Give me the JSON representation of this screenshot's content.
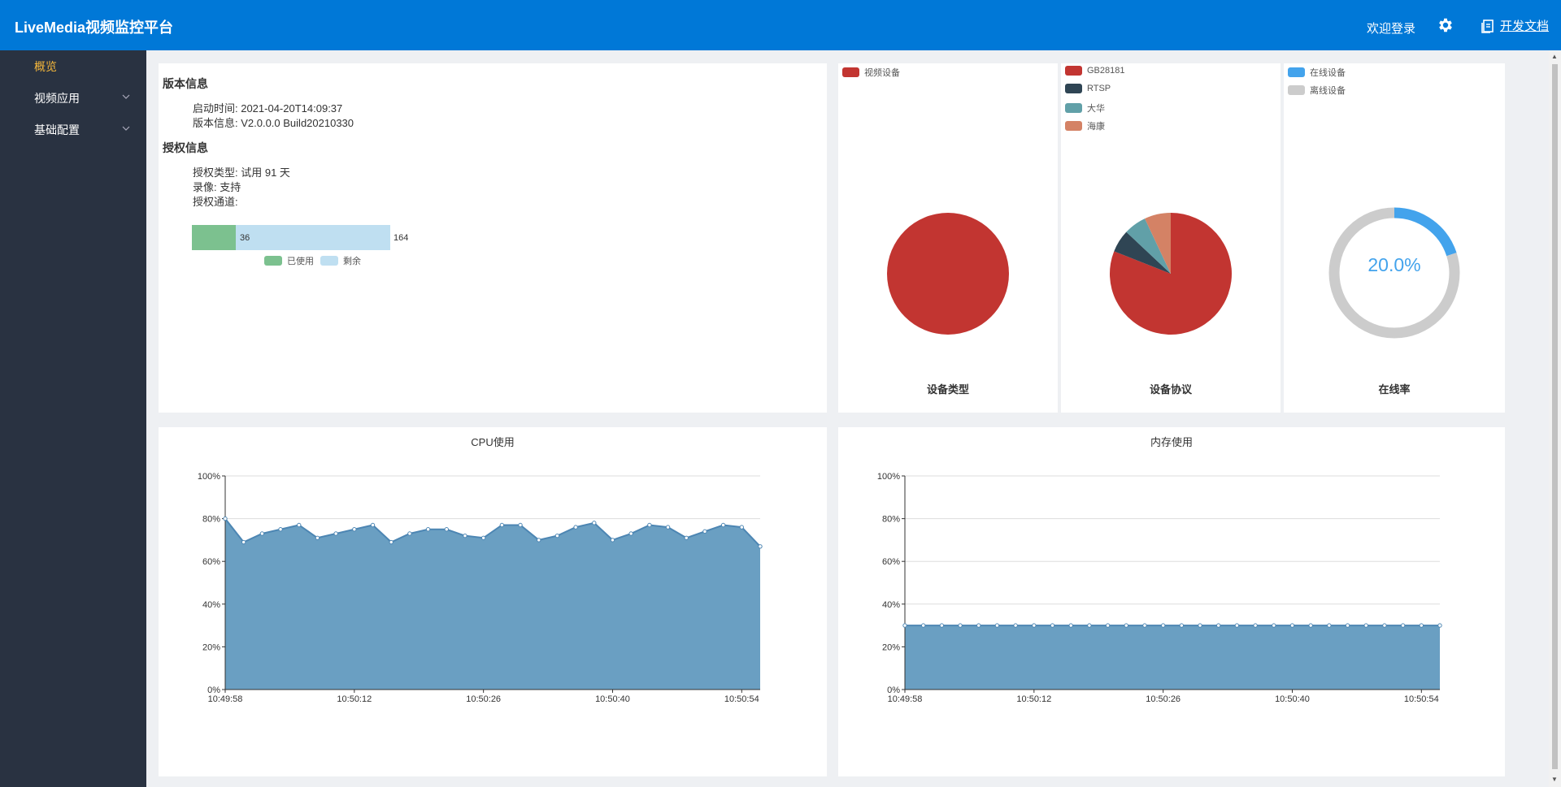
{
  "header": {
    "brand": "LiveMedia视频监控平台",
    "welcome": "欢迎登录",
    "settings_icon": "gear-icon",
    "docs_icon": "document-icon",
    "docs_label": "开发文档"
  },
  "sidebar": {
    "items": [
      {
        "label": "概览",
        "active": true,
        "has_submenu": false
      },
      {
        "label": "视频应用",
        "active": false,
        "has_submenu": true
      },
      {
        "label": "基础配置",
        "active": false,
        "has_submenu": true
      }
    ]
  },
  "info": {
    "version_title": "版本信息",
    "start_time": "启动时间: 2021-04-20T14:09:37",
    "version": "版本信息: V2.0.0.0 Build20210330",
    "license_title": "授权信息",
    "license_type": "授权类型: 试用 91 天",
    "recording": "录像: 支持",
    "channels": "授权通道:",
    "channel_bar": {
      "used": 36,
      "total": 164,
      "used_label": "已使用",
      "remaining_label": "剩余",
      "used_color": "#7cc18f",
      "remaining_color": "#bfdff1"
    }
  },
  "pies": [
    {
      "title": "设备类型",
      "legend": [
        {
          "label": "视频设备",
          "color": "#c23531"
        }
      ],
      "chart_data": {
        "type": "pie",
        "slices": [
          {
            "label": "视频设备",
            "value": 1,
            "color": "#c23531"
          }
        ]
      }
    },
    {
      "title": "设备协议",
      "legend": [
        {
          "label": "GB28181",
          "color": "#c23531"
        },
        {
          "label": "RTSP",
          "color": "#2f4554"
        },
        {
          "label": "大华",
          "color": "#61a0a8"
        },
        {
          "label": "海康",
          "color": "#d48265"
        }
      ],
      "chart_data": {
        "type": "pie",
        "slices": [
          {
            "label": "GB28181",
            "value": 0.81,
            "color": "#c23531"
          },
          {
            "label": "RTSP",
            "value": 0.06,
            "color": "#2f4554"
          },
          {
            "label": "大华",
            "value": 0.06,
            "color": "#61a0a8"
          },
          {
            "label": "海康",
            "value": 0.07,
            "color": "#d48265"
          }
        ]
      }
    },
    {
      "title": "在线率",
      "legend": [
        {
          "label": "在线设备",
          "color": "#43a3ec"
        },
        {
          "label": "离线设备",
          "color": "#cccccc"
        }
      ],
      "center_label": "20.0%",
      "chart_data": {
        "type": "pie",
        "donut": true,
        "slices": [
          {
            "label": "在线设备",
            "value": 0.2,
            "color": "#43a3ec"
          },
          {
            "label": "离线设备",
            "value": 0.8,
            "color": "#cccccc"
          }
        ]
      }
    }
  ],
  "chart_data": [
    {
      "type": "area",
      "title": "CPU使用",
      "ylim": [
        0,
        100
      ],
      "yticks": [
        "0%",
        "20%",
        "40%",
        "60%",
        "80%",
        "100%"
      ],
      "xtick_labels": [
        "10:49:58",
        "10:50:12",
        "10:50:26",
        "10:50:40",
        "10:50:54"
      ],
      "xtick_index": [
        0,
        7,
        14,
        21,
        28
      ],
      "values": [
        80,
        69,
        73,
        75,
        77,
        71,
        73,
        75,
        77,
        69,
        73,
        75,
        75,
        72,
        71,
        77,
        77,
        70,
        72,
        76,
        78,
        70,
        73,
        77,
        76,
        71,
        74,
        77,
        76,
        67
      ],
      "color": "#6a9fc2"
    },
    {
      "type": "area",
      "title": "内存使用",
      "ylim": [
        0,
        100
      ],
      "yticks": [
        "0%",
        "20%",
        "40%",
        "60%",
        "80%",
        "100%"
      ],
      "xtick_labels": [
        "10:49:58",
        "10:50:12",
        "10:50:26",
        "10:50:40",
        "10:50:54"
      ],
      "xtick_index": [
        0,
        7,
        14,
        21,
        28
      ],
      "values": [
        30,
        30,
        30,
        30,
        30,
        30,
        30,
        30,
        30,
        30,
        30,
        30,
        30,
        30,
        30,
        30,
        30,
        30,
        30,
        30,
        30,
        30,
        30,
        30,
        30,
        30,
        30,
        30,
        30,
        30
      ],
      "color": "#6a9fc2"
    }
  ]
}
